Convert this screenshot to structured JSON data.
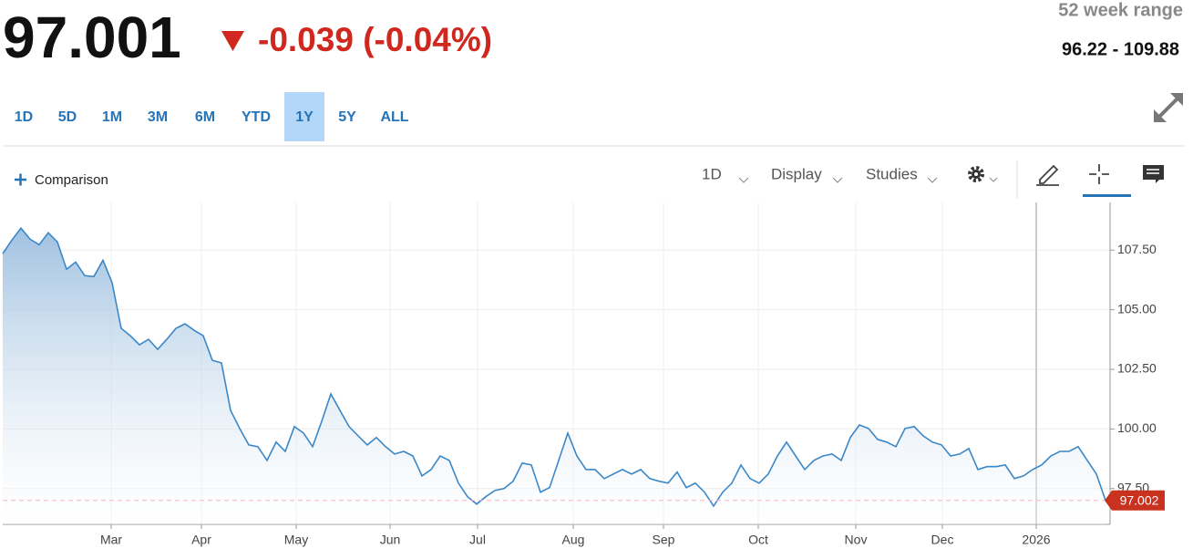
{
  "quote": {
    "price": "97.001",
    "change": "-0.039 (-0.04%)",
    "range_label": "52 week range",
    "range": "96.22 - 109.88"
  },
  "ranges": [
    "1D",
    "5D",
    "1M",
    "3M",
    "6M",
    "YTD",
    "1Y",
    "5Y",
    "ALL"
  ],
  "selected_range": 6,
  "toolbar": {
    "comparison": "Comparison",
    "interval": "1D",
    "display": "Display",
    "studies": "Studies"
  },
  "chart_data": {
    "type": "line",
    "color": "#3a87c8",
    "grid": true,
    "values": [
      107.35,
      107.92,
      108.42,
      107.96,
      107.73,
      108.23,
      107.84,
      106.7,
      107.0,
      106.43,
      106.39,
      107.08,
      106.13,
      104.22,
      103.91,
      103.53,
      103.76,
      103.34,
      103.76,
      104.22,
      104.41,
      104.14,
      103.91,
      102.88,
      102.77,
      100.78,
      100.02,
      99.33,
      99.26,
      98.68,
      99.45,
      99.06,
      100.1,
      99.83,
      99.26,
      100.32,
      101.47,
      100.78,
      100.1,
      99.71,
      99.33,
      99.64,
      99.26,
      98.95,
      99.06,
      98.87,
      98.03,
      98.3,
      98.87,
      98.68,
      97.73,
      97.16,
      96.85,
      97.16,
      97.42,
      97.5,
      97.81,
      98.57,
      98.49,
      97.35,
      97.54,
      98.68,
      99.83,
      98.87,
      98.3,
      98.3,
      97.92,
      98.11,
      98.3,
      98.11,
      98.3,
      97.92,
      97.81,
      97.73,
      98.19,
      97.54,
      97.73,
      97.35,
      96.77,
      97.35,
      97.73,
      98.49,
      97.92,
      97.73,
      98.11,
      98.87,
      99.45,
      98.87,
      98.3,
      98.68,
      98.87,
      98.95,
      98.68,
      99.64,
      100.17,
      100.02,
      99.56,
      99.45,
      99.26,
      100.02,
      100.1,
      99.71,
      99.45,
      99.33,
      98.87,
      98.95,
      99.18,
      98.3,
      98.42,
      98.42,
      98.49,
      97.92,
      98.03,
      98.3,
      98.49,
      98.87,
      99.06,
      99.06,
      99.26,
      98.68,
      98.11,
      97.002
    ],
    "xlim": [
      0,
      121.5
    ],
    "xticks": [
      {
        "value": 11.9,
        "label": "Mar"
      },
      {
        "value": 21.8,
        "label": "Apr"
      },
      {
        "value": 32.2,
        "label": "May"
      },
      {
        "value": 42.5,
        "label": "Jun"
      },
      {
        "value": 52.1,
        "label": "Jul"
      },
      {
        "value": 62.6,
        "label": "Aug"
      },
      {
        "value": 72.5,
        "label": "Sep"
      },
      {
        "value": 82.9,
        "label": "Oct"
      },
      {
        "value": 93.6,
        "label": "Nov"
      },
      {
        "value": 103.1,
        "label": "Dec"
      },
      {
        "value": 113.4,
        "label": "2026"
      }
    ],
    "ylim": [
      96.0,
      109.5
    ],
    "yticks": [
      {
        "value": 97.5,
        "label": "97.50"
      },
      {
        "value": 100,
        "label": "100.00"
      },
      {
        "value": 102.5,
        "label": "102.50"
      },
      {
        "value": 105,
        "label": "105.00"
      },
      {
        "value": 107.5,
        "label": "107.50"
      }
    ]
  }
}
